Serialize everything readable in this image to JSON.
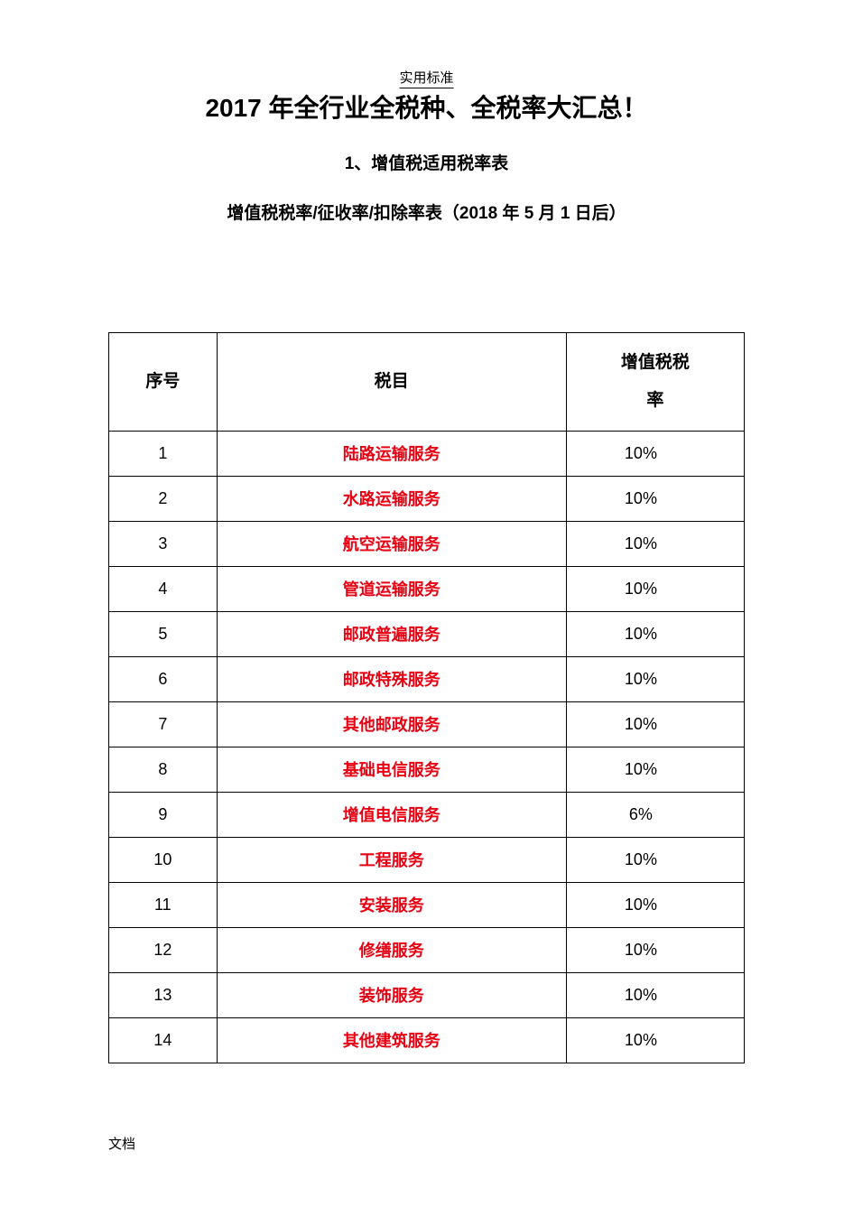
{
  "header": {
    "label": "实用标准"
  },
  "titles": {
    "main": "2017 年全行业全税种、全税率大汇总！",
    "sub1": "1、增值税适用税率表",
    "sub2": "增值税税率/征收率/扣除率表（2018 年 5 月 1 日后）"
  },
  "table": {
    "columns": {
      "seq": "序号",
      "item": "税目",
      "rate_line1": "增值税税",
      "rate_line2": "率"
    },
    "column_widths": {
      "seq": "17%",
      "item": "55%",
      "rate": "28%"
    },
    "colors": {
      "text": "#000000",
      "item_text": "#e60012",
      "border": "#000000",
      "background": "#ffffff"
    },
    "font_sizes": {
      "header": 19,
      "body": 18
    },
    "rows": [
      {
        "seq": "1",
        "item": "陆路运输服务",
        "rate": "10%"
      },
      {
        "seq": "2",
        "item": "水路运输服务",
        "rate": "10%"
      },
      {
        "seq": "3",
        "item": "航空运输服务",
        "rate": "10%"
      },
      {
        "seq": "4",
        "item": "管道运输服务",
        "rate": "10%"
      },
      {
        "seq": "5",
        "item": "邮政普遍服务",
        "rate": "10%"
      },
      {
        "seq": "6",
        "item": "邮政特殊服务",
        "rate": "10%"
      },
      {
        "seq": "7",
        "item": "其他邮政服务",
        "rate": "10%"
      },
      {
        "seq": "8",
        "item": "基础电信服务",
        "rate": "10%"
      },
      {
        "seq": "9",
        "item": "增值电信服务",
        "rate": "6%"
      },
      {
        "seq": "10",
        "item": "工程服务",
        "rate": "10%"
      },
      {
        "seq": "11",
        "item": "安装服务",
        "rate": "10%"
      },
      {
        "seq": "12",
        "item": "修缮服务",
        "rate": "10%"
      },
      {
        "seq": "13",
        "item": "装饰服务",
        "rate": "10%"
      },
      {
        "seq": "14",
        "item": "其他建筑服务",
        "rate": "10%"
      }
    ]
  },
  "footer": {
    "label": "文档"
  }
}
